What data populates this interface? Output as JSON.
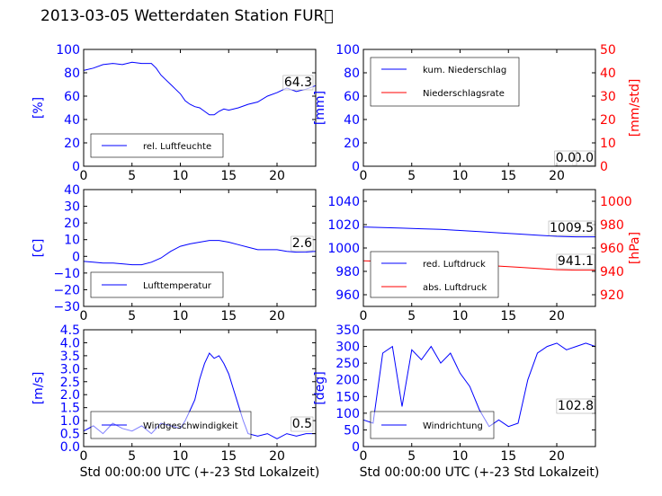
{
  "title": "2013-03-05 Wetterdaten Station FUR\u0000",
  "colors": {
    "blue": "#0000ff",
    "red": "#ff0000",
    "black": "#000000"
  },
  "chart_data": [
    {
      "id": "humidity",
      "type": "line",
      "xlim": [
        0,
        24
      ],
      "ylim": [
        0,
        100
      ],
      "xticks": [
        "0",
        "5",
        "10",
        "15",
        "20"
      ],
      "yticks": [
        "0",
        "20",
        "40",
        "60",
        "80",
        "100"
      ],
      "ylabel": "[%]",
      "xlabel": "",
      "legend_pos": "lower-left",
      "value_label": "64.3",
      "series": [
        {
          "name": "rel. Luftfeuchte",
          "color": "#0000ff",
          "x": [
            0,
            1,
            2,
            3,
            4,
            5,
            6,
            7,
            7.5,
            8,
            8.5,
            9,
            9.5,
            10,
            10.5,
            11,
            11.5,
            12,
            12.5,
            13,
            13.5,
            14,
            14.5,
            15,
            16,
            17,
            18,
            19,
            20,
            21,
            22,
            23,
            24
          ],
          "y": [
            82,
            84,
            87,
            88,
            87,
            89,
            88,
            88,
            84,
            78,
            74,
            70,
            66,
            62,
            56,
            53,
            51,
            50,
            47,
            44,
            44,
            47,
            49,
            48,
            50,
            53,
            55,
            60,
            63,
            67,
            64,
            66,
            69
          ]
        }
      ]
    },
    {
      "id": "precipitation",
      "type": "line",
      "xlim": [
        0,
        24
      ],
      "ylim": [
        0,
        100
      ],
      "ylim_right": [
        0,
        50
      ],
      "xticks": [
        "0",
        "5",
        "10",
        "15",
        "20"
      ],
      "yticks": [
        "0",
        "20",
        "40",
        "60",
        "80",
        "100"
      ],
      "yticks_right": [
        "0",
        "10",
        "20",
        "30",
        "40",
        "50"
      ],
      "ylabel": "[mm]",
      "ylabel_right": "[mm/std]",
      "xlabel": "",
      "legend_pos": "upper-left",
      "value_label": "0.0",
      "value_label_2": "0.0",
      "series": [
        {
          "name": "kum. Niederschlag",
          "color": "#0000ff",
          "axis": "left",
          "x": [
            0,
            24
          ],
          "y": [
            0,
            0
          ]
        },
        {
          "name": "Niederschlagsrate",
          "color": "#ff0000",
          "axis": "right",
          "x": [
            0,
            24
          ],
          "y": [
            0,
            0
          ]
        }
      ]
    },
    {
      "id": "temperature",
      "type": "line",
      "xlim": [
        0,
        24
      ],
      "ylim": [
        -30,
        40
      ],
      "xticks": [
        "0",
        "5",
        "10",
        "15",
        "20"
      ],
      "yticks": [
        "−30",
        "−20",
        "−10",
        "0",
        "10",
        "20",
        "30",
        "40"
      ],
      "ytick_values": [
        -30,
        -20,
        -10,
        0,
        10,
        20,
        30,
        40
      ],
      "ylabel": "[C]",
      "xlabel": "",
      "legend_pos": "lower-left",
      "value_label": "2.6",
      "series": [
        {
          "name": "Lufttemperatur",
          "color": "#0000ff",
          "x": [
            0,
            1,
            2,
            3,
            4,
            5,
            6,
            7,
            8,
            9,
            10,
            11,
            12,
            13,
            14,
            15,
            16,
            17,
            18,
            19,
            20,
            21,
            22,
            23,
            24
          ],
          "y": [
            -3,
            -3.5,
            -4,
            -4,
            -4.5,
            -5,
            -5,
            -3.5,
            -1,
            3,
            6,
            7.5,
            8.5,
            9.5,
            9.5,
            8.5,
            7,
            5.5,
            4,
            4,
            4,
            3,
            2.5,
            2.6,
            3
          ]
        }
      ]
    },
    {
      "id": "pressure",
      "type": "line",
      "xlim": [
        0,
        24
      ],
      "ylim": [
        950,
        1050
      ],
      "ylim_right": [
        910,
        1010
      ],
      "xticks": [
        "0",
        "5",
        "10",
        "15",
        "20"
      ],
      "yticks": [
        "960",
        "980",
        "1000",
        "1020",
        "1040"
      ],
      "ytick_values": [
        960,
        980,
        1000,
        1020,
        1040
      ],
      "yticks_right": [
        "920",
        "940",
        "960",
        "980",
        "1000"
      ],
      "ytick_values_right": [
        920,
        940,
        960,
        980,
        1000
      ],
      "ylabel": "",
      "ylabel_right": "[hPa]",
      "xlabel": "",
      "legend_pos": "lower-left",
      "value_label": "1009.5",
      "value_label_2": "941.1",
      "series": [
        {
          "name": "red. Luftdruck",
          "color": "#0000ff",
          "axis": "left",
          "x": [
            0,
            2,
            4,
            6,
            8,
            10,
            12,
            14,
            16,
            18,
            20,
            22,
            24
          ],
          "y": [
            1018,
            1017.5,
            1017,
            1016.5,
            1016,
            1015,
            1014,
            1013,
            1012,
            1011,
            1010,
            1009.5,
            1009.5
          ]
        },
        {
          "name": "abs. Luftdruck",
          "color": "#ff0000",
          "axis": "right",
          "x": [
            0,
            2,
            4,
            6,
            8,
            10,
            12,
            14,
            16,
            18,
            20,
            22,
            24
          ],
          "y": [
            949,
            948.5,
            948,
            947.5,
            947,
            946,
            945.5,
            944.5,
            943.5,
            942.5,
            941.5,
            941.1,
            941.1
          ]
        }
      ]
    },
    {
      "id": "windspeed",
      "type": "line",
      "xlim": [
        0,
        24
      ],
      "ylim": [
        0,
        4.5
      ],
      "xticks": [
        "0",
        "5",
        "10",
        "15",
        "20"
      ],
      "yticks": [
        "0.0",
        "0.5",
        "1.0",
        "1.5",
        "2.0",
        "2.5",
        "3.0",
        "3.5",
        "4.0",
        "4.5"
      ],
      "ylabel": "[m/s]",
      "xlabel": "Std 00:00:00 UTC (+-23 Std Lokalzeit)",
      "legend_pos": "lower-left",
      "value_label": "0.5",
      "series": [
        {
          "name": "Windgeschwindigkeit",
          "color": "#0000ff",
          "x": [
            0,
            1,
            2,
            3,
            4,
            5,
            6,
            7,
            8,
            9,
            10,
            10.5,
            11,
            11.5,
            12,
            12.5,
            13,
            13.5,
            14,
            14.5,
            15,
            15.5,
            16,
            16.5,
            17,
            18,
            19,
            20,
            21,
            22,
            23,
            24
          ],
          "y": [
            0.6,
            0.8,
            0.5,
            0.9,
            0.7,
            0.6,
            0.8,
            0.5,
            0.9,
            0.8,
            0.7,
            1.0,
            1.4,
            1.8,
            2.6,
            3.2,
            3.6,
            3.4,
            3.5,
            3.2,
            2.8,
            2.2,
            1.6,
            1.0,
            0.5,
            0.4,
            0.5,
            0.3,
            0.5,
            0.4,
            0.5,
            0.5
          ]
        }
      ]
    },
    {
      "id": "winddir",
      "type": "line",
      "xlim": [
        0,
        24
      ],
      "ylim": [
        0,
        350
      ],
      "xticks": [
        "0",
        "5",
        "10",
        "15",
        "20"
      ],
      "yticks": [
        "0",
        "50",
        "100",
        "150",
        "200",
        "250",
        "300",
        "350"
      ],
      "ylabel": "[deg]",
      "xlabel": "Std 00:00:00 UTC (+-23 Std Lokalzeit)",
      "legend_pos": "lower-left",
      "value_label": "102.8",
      "series": [
        {
          "name": "Windrichtung",
          "color": "#0000ff",
          "x": [
            0,
            1,
            2,
            3,
            4,
            5,
            6,
            7,
            8,
            9,
            10,
            11,
            12,
            13,
            14,
            15,
            16,
            17,
            18,
            19,
            20,
            21,
            22,
            23,
            24
          ],
          "y": [
            80,
            70,
            280,
            300,
            120,
            290,
            260,
            300,
            250,
            280,
            220,
            180,
            110,
            60,
            80,
            60,
            70,
            200,
            280,
            300,
            310,
            290,
            300,
            310,
            300
          ]
        }
      ]
    }
  ]
}
